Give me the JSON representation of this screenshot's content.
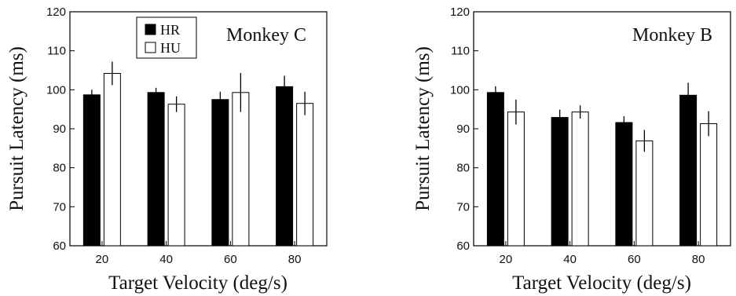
{
  "chart_data": [
    {
      "type": "bar",
      "panel_label": "Monkey C",
      "categories": [
        "20",
        "40",
        "60",
        "80"
      ],
      "series": [
        {
          "name": "HR",
          "values": [
            98.7,
            99.3,
            97.5,
            100.8
          ],
          "errors": [
            1.3,
            1.2,
            2.0,
            2.8
          ],
          "color": "#000000"
        },
        {
          "name": "HU",
          "values": [
            104.2,
            96.3,
            99.3,
            96.5
          ],
          "errors": [
            3.0,
            2.0,
            5.0,
            3.0
          ],
          "color": "#ffffff"
        }
      ],
      "xlabel": "Target Velocity (deg/s)",
      "ylabel": "Pursuit Latency (ms)",
      "ylim": [
        60,
        120
      ],
      "yticks": [
        "60",
        "70",
        "80",
        "90",
        "100",
        "110",
        "120"
      ],
      "legend": {
        "placement": "top-left",
        "entries": [
          "HR",
          "HU"
        ]
      },
      "grid": false
    },
    {
      "type": "bar",
      "panel_label": "Monkey B",
      "categories": [
        "20",
        "40",
        "60",
        "80"
      ],
      "series": [
        {
          "name": "HR",
          "values": [
            99.3,
            92.9,
            91.6,
            98.6
          ],
          "errors": [
            1.6,
            2.0,
            1.6,
            3.2
          ],
          "color": "#000000"
        },
        {
          "name": "HU",
          "values": [
            94.3,
            94.3,
            86.9,
            91.3
          ],
          "errors": [
            3.2,
            1.7,
            2.8,
            3.2
          ],
          "color": "#ffffff"
        }
      ],
      "xlabel": "Target Velocity (deg/s)",
      "ylabel": "Pursuit Latency (ms)",
      "ylim": [
        60,
        120
      ],
      "yticks": [
        "60",
        "70",
        "80",
        "90",
        "100",
        "110",
        "120"
      ],
      "grid": false
    }
  ]
}
